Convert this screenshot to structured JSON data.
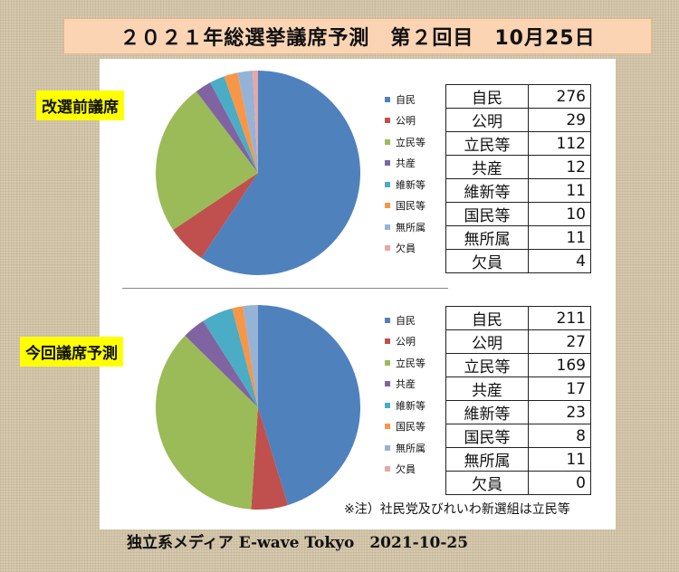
{
  "header": {
    "title": "２０２１年総選挙議席予測　第２回目　10月25日"
  },
  "chart_data": [
    {
      "type": "pie",
      "label": "改選前議席",
      "categories": [
        "自民",
        "公明",
        "立民等",
        "共産",
        "維新等",
        "国民等",
        "無所属",
        "欠員"
      ],
      "values": [
        276,
        29,
        112,
        12,
        11,
        10,
        11,
        4
      ],
      "colors": [
        "#4f81bd",
        "#c0504d",
        "#9bbb59",
        "#8064a2",
        "#4bacc6",
        "#f79646",
        "#95b3d7",
        "#e6a7a5"
      ],
      "legend_position": "right"
    },
    {
      "type": "pie",
      "label": "今回議席予測",
      "categories": [
        "自民",
        "公明",
        "立民等",
        "共産",
        "維新等",
        "国民等",
        "無所属",
        "欠員"
      ],
      "values": [
        211,
        27,
        169,
        17,
        23,
        8,
        11,
        0
      ],
      "colors": [
        "#4f81bd",
        "#c0504d",
        "#9bbb59",
        "#8064a2",
        "#4bacc6",
        "#f79646",
        "#95b3d7",
        "#e6a7a5"
      ],
      "legend_position": "right"
    }
  ],
  "footer": {
    "note": "※注）社民党及びれいわ新選組は立民等",
    "credit": "独立系メディア E-wave Tokyo　2021-10-25"
  }
}
